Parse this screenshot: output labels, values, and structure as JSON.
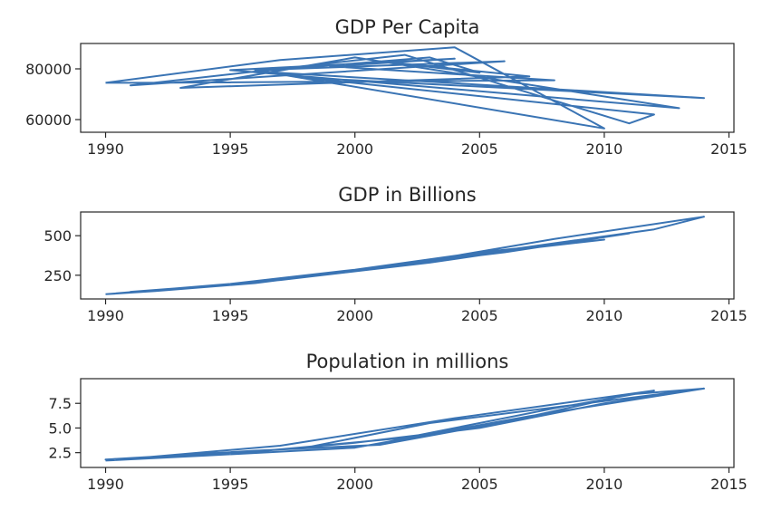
{
  "chart_data": [
    {
      "type": "line",
      "title": "GDP Per Capita",
      "xlabel": "",
      "ylabel": "",
      "xlim": [
        1989,
        2015.2
      ],
      "ylim": [
        55000,
        90000
      ],
      "xticks": [
        1990,
        1995,
        2000,
        2005,
        2010,
        2015
      ],
      "yticks": [
        60000,
        80000
      ],
      "series": [
        {
          "x": [
            1990,
            1997,
            2004,
            2010,
            1996,
            2006,
            1991,
            2002,
            2011,
            2012,
            1998,
            2014,
            1996,
            2003,
            2005,
            2001,
            2007,
            1993,
            2000,
            2013,
            1995,
            2004,
            1999,
            2008,
            1992,
            1990
          ],
          "y": [
            74500,
            83500,
            88500,
            56500,
            79500,
            83000,
            73500,
            85500,
            58500,
            62000,
            76500,
            68500,
            79000,
            84500,
            78500,
            83000,
            77000,
            72500,
            84500,
            64500,
            79500,
            84000,
            81000,
            75500,
            74500,
            74500
          ]
        }
      ]
    },
    {
      "type": "line",
      "title": "GDP in Billions",
      "xlabel": "",
      "ylabel": "",
      "xlim": [
        1989,
        2015.2
      ],
      "ylim": [
        100,
        650
      ],
      "xticks": [
        1990,
        1995,
        2000,
        2005,
        2010,
        2015
      ],
      "yticks": [
        250,
        500
      ],
      "series": [
        {
          "x": [
            1990,
            1995,
            2000,
            2005,
            2010,
            2005,
            2000,
            1995,
            1991,
            1996,
            2002,
            2007,
            2012,
            2014,
            2008,
            2003,
            1998,
            1993,
            1991,
            1997,
            2003,
            2011,
            2006,
            2001,
            1996,
            1992,
            1990
          ],
          "y": [
            130,
            195,
            285,
            395,
            475,
            385,
            275,
            190,
            145,
            205,
            320,
            430,
            540,
            620,
            480,
            345,
            240,
            165,
            140,
            220,
            330,
            515,
            395,
            300,
            200,
            150,
            130
          ]
        }
      ]
    },
    {
      "type": "line",
      "title": "Population in millions",
      "xlabel": "",
      "ylabel": "",
      "xlim": [
        1989,
        2015.2
      ],
      "ylim": [
        1.0,
        10.0
      ],
      "xticks": [
        1990,
        1995,
        2000,
        2005,
        2010,
        2015
      ],
      "yticks": [
        2.5,
        5.0,
        7.5
      ],
      "series": [
        {
          "x": [
            1990,
            1995,
            2000,
            2005,
            2010,
            2014,
            2003,
            1998,
            1993,
            1991,
            1997,
            2004,
            2012,
            2008,
            2002,
            1996,
            1992,
            1990,
            1996,
            2001,
            2006,
            2011,
            2014,
            2007,
            2000,
            1994,
            1990
          ],
          "y": [
            1.7,
            2.4,
            3.5,
            5.0,
            7.5,
            9.0,
            5.5,
            3.0,
            2.1,
            1.9,
            3.2,
            6.0,
            8.8,
            7.0,
            4.0,
            2.6,
            2.0,
            1.8,
            2.7,
            3.3,
            5.6,
            8.4,
            9.0,
            6.2,
            3.0,
            2.2,
            1.7
          ]
        }
      ]
    }
  ]
}
